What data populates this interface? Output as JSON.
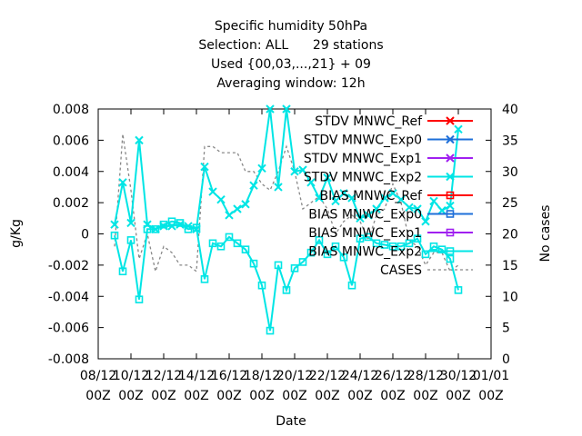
{
  "chart_data": {
    "type": "line",
    "title_lines": [
      "Specific humidity 50hPa",
      "Selection: ALL      29 stations",
      "Used {00,03,...,21} + 09",
      "Averaging window: 12h"
    ],
    "xlabel": "Date",
    "ylabel": "g/Kg",
    "y2label": "No cases",
    "ylim": [
      -0.008,
      0.008
    ],
    "y2lim": [
      0,
      40
    ],
    "y_ticks": [
      "0.008",
      "0.006",
      "0.004",
      "0.002",
      "0",
      "-0.002",
      "-0.004",
      "-0.006",
      "-0.008"
    ],
    "y2_ticks": [
      "40",
      "35",
      "30",
      "25",
      "20",
      "15",
      "10",
      "5",
      "0"
    ],
    "x_ticks": [
      {
        "top": "08/12",
        "bottom": "00Z"
      },
      {
        "top": "10/12",
        "bottom": "00Z"
      },
      {
        "top": "12/12",
        "bottom": "00Z"
      },
      {
        "top": "14/12",
        "bottom": "00Z"
      },
      {
        "top": "16/12",
        "bottom": "00Z"
      },
      {
        "top": "18/12",
        "bottom": "00Z"
      },
      {
        "top": "20/12",
        "bottom": "00Z"
      },
      {
        "top": "22/12",
        "bottom": "00Z"
      },
      {
        "top": "24/12",
        "bottom": "00Z"
      },
      {
        "top": "26/12",
        "bottom": "00Z"
      },
      {
        "top": "28/12",
        "bottom": "00Z"
      },
      {
        "top": "30/12",
        "bottom": "00Z"
      },
      {
        "top": "01/01",
        "bottom": "00Z"
      }
    ],
    "x_range_days": [
      0,
      24
    ],
    "grid": false,
    "legend_position": "top-right",
    "stdv_x": [
      1.0,
      1.5,
      2.0,
      2.5,
      3.0,
      3.5,
      4.0,
      4.5,
      5.0,
      5.5,
      6.0,
      6.5,
      7.0,
      7.5,
      8.0,
      8.5,
      9.0,
      9.5,
      10.0,
      10.5,
      11.0,
      11.5,
      12.0,
      12.5,
      13.0,
      13.5,
      14.0,
      14.5,
      15.0,
      15.5,
      16.0,
      16.5,
      17.0,
      17.5,
      18.0,
      18.5,
      19.0,
      19.5,
      20.0,
      20.5,
      21.0,
      21.5,
      22.0
    ],
    "stdv_y": [
      0.0006,
      0.0033,
      0.0007,
      0.006,
      0.0006,
      0.0003,
      0.0005,
      0.0005,
      0.0006,
      0.0005,
      0.0003,
      0.0043,
      0.0027,
      0.0022,
      0.0012,
      0.0016,
      0.0019,
      0.0031,
      0.0042,
      0.008,
      0.003,
      0.008,
      0.004,
      0.0041,
      0.0033,
      0.0023,
      0.0036,
      0.0021,
      0.0026,
      0.0023,
      0.001,
      0.0012,
      0.0016,
      0.0023,
      0.0026,
      0.0022,
      0.0017,
      0.0016,
      0.0008,
      0.0021,
      0.0015,
      0.0018,
      0.0067
    ],
    "bias_x": [
      1.0,
      1.5,
      2.0,
      2.5,
      3.0,
      3.5,
      4.0,
      4.5,
      5.0,
      5.5,
      6.0,
      6.5,
      7.0,
      7.5,
      8.0,
      8.5,
      9.0,
      9.5,
      10.0,
      10.5,
      11.0,
      11.5,
      12.0,
      12.5,
      13.0,
      13.5,
      14.0,
      14.5,
      15.0,
      15.5,
      16.0,
      16.5,
      17.0,
      17.5,
      18.0,
      18.5,
      19.0,
      19.5,
      20.0,
      20.5,
      21.0,
      21.5,
      22.0
    ],
    "bias_y": [
      -0.0001,
      -0.0024,
      -0.0004,
      -0.0042,
      0.0003,
      0.0003,
      0.0006,
      0.0008,
      0.0007,
      0.0003,
      0.0004,
      -0.0029,
      -0.0006,
      -0.0008,
      -0.0002,
      -0.0006,
      -0.001,
      -0.0019,
      -0.0033,
      -0.0062,
      -0.002,
      -0.0036,
      -0.0022,
      -0.0018,
      -0.0012,
      -0.0004,
      -0.0013,
      -0.0008,
      -0.0015,
      -0.0033,
      -0.0003,
      -0.0002,
      -0.0006,
      -0.0007,
      -0.0008,
      -0.0008,
      -0.0006,
      -0.0003,
      -0.0013,
      -0.0008,
      -0.001,
      -0.0016,
      -0.0036
    ],
    "cases_x": [
      1.0,
      1.5,
      2.0,
      2.5,
      3.0,
      3.5,
      4.0,
      4.5,
      5.0,
      5.5,
      6.0,
      6.5,
      7.0,
      7.5,
      8.0,
      8.5,
      9.0,
      9.5,
      10.0,
      10.5,
      11.0,
      11.5,
      12.0,
      12.5,
      13.0,
      13.5,
      14.0,
      14.5,
      15.0,
      15.5,
      16.0,
      16.5,
      17.0,
      17.5,
      18.0,
      18.5,
      19.0,
      19.5,
      20.0,
      20.5,
      21.0,
      21.5,
      22.0
    ],
    "cases_y": [
      18,
      36,
      27,
      16,
      20,
      14,
      18,
      17,
      15,
      15,
      14,
      34,
      34,
      33,
      33,
      33,
      30,
      30,
      28,
      27,
      30,
      34,
      30,
      24,
      25,
      26,
      24,
      20,
      22,
      23,
      22,
      19,
      23,
      24,
      28,
      25,
      19,
      18,
      15,
      17,
      17,
      14,
      15
    ],
    "series": [
      {
        "name": "STDV MNWC_Ref",
        "color": "#ff0000",
        "marker": "x"
      },
      {
        "name": "STDV MNWC_Exp0",
        "color": "#1e6fd9",
        "marker": "x"
      },
      {
        "name": "STDV MNWC_Exp1",
        "color": "#a020f0",
        "marker": "x"
      },
      {
        "name": "STDV MNWC_Exp2",
        "color": "#00e5e5",
        "marker": "x"
      },
      {
        "name": "BIAS MNWC_Ref",
        "color": "#ff0000",
        "marker": "square"
      },
      {
        "name": "BIAS MNWC_Exp0",
        "color": "#1e6fd9",
        "marker": "square"
      },
      {
        "name": "BIAS MNWC_Exp1",
        "color": "#a020f0",
        "marker": "square"
      },
      {
        "name": "BIAS MNWC_Exp2",
        "color": "#00e5e5",
        "marker": "square"
      },
      {
        "name": "CASES",
        "color": "#888888",
        "marker": "none",
        "dash": true
      }
    ]
  }
}
